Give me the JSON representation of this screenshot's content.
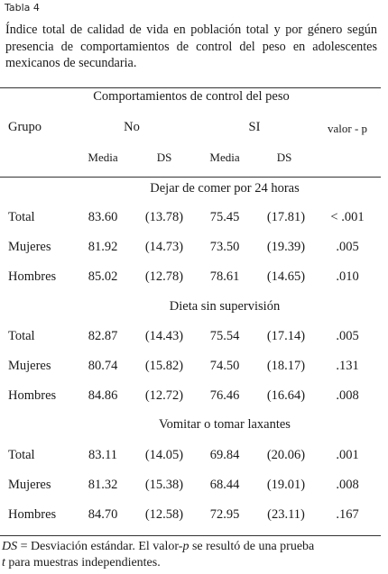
{
  "tag": "Tabla 4",
  "caption": "Índice total de calidad de vida en población total y por género según presencia de comportamientos de control del peso en adolescentes mexicanos de secundaria.",
  "header": {
    "group_title": "Comportamientos de control del peso",
    "grupo": "Grupo",
    "no": "No",
    "si": "SI",
    "pvalue": "valor - p",
    "media": "Media",
    "ds": "DS"
  },
  "sections": [
    {
      "title": "Dejar de comer por 24 horas",
      "rows": [
        {
          "grupo": "Total",
          "no_media": "83.60",
          "no_ds": "(13.78)",
          "si_media": "75.45",
          "si_ds": "(17.81)",
          "p": "< .001"
        },
        {
          "grupo": "Mujeres",
          "no_media": "81.92",
          "no_ds": "(14.73)",
          "si_media": "73.50",
          "si_ds": "(19.39)",
          "p": ".005"
        },
        {
          "grupo": "Hombres",
          "no_media": "85.02",
          "no_ds": "(12.78)",
          "si_media": "78.61",
          "si_ds": "(14.65)",
          "p": ".010"
        }
      ]
    },
    {
      "title": "Dieta sin supervisión",
      "rows": [
        {
          "grupo": "Total",
          "no_media": "82.87",
          "no_ds": "(14.43)",
          "si_media": "75.54",
          "si_ds": "(17.14)",
          "p": ".005"
        },
        {
          "grupo": "Mujeres",
          "no_media": "80.74",
          "no_ds": "(15.82)",
          "si_media": "74.50",
          "si_ds": "(18.17)",
          "p": ".131"
        },
        {
          "grupo": "Hombres",
          "no_media": "84.86",
          "no_ds": "(12.72)",
          "si_media": "76.46",
          "si_ds": "(16.64)",
          "p": ".008"
        }
      ]
    },
    {
      "title": "Vomitar o tomar laxantes",
      "rows": [
        {
          "grupo": "Total",
          "no_media": "83.11",
          "no_ds": "(14.05)",
          "si_media": "69.84",
          "si_ds": "(20.06)",
          "p": ".001"
        },
        {
          "grupo": "Mujeres",
          "no_media": "81.32",
          "no_ds": "(15.38)",
          "si_media": "68.44",
          "si_ds": "(19.01)",
          "p": ".008"
        },
        {
          "grupo": "Hombres",
          "no_media": "84.70",
          "no_ds": "(12.58)",
          "si_media": "72.95",
          "si_ds": "(23.11)",
          "p": ".167"
        }
      ]
    }
  ],
  "footnote": {
    "ds_abbr": "DS",
    "ds_def": " = Desviación estándar. El valor-",
    "p_italic": "p",
    "mid": " se resultó de  una prueba ",
    "t_italic": "t",
    "end": " para muestras independientes."
  }
}
